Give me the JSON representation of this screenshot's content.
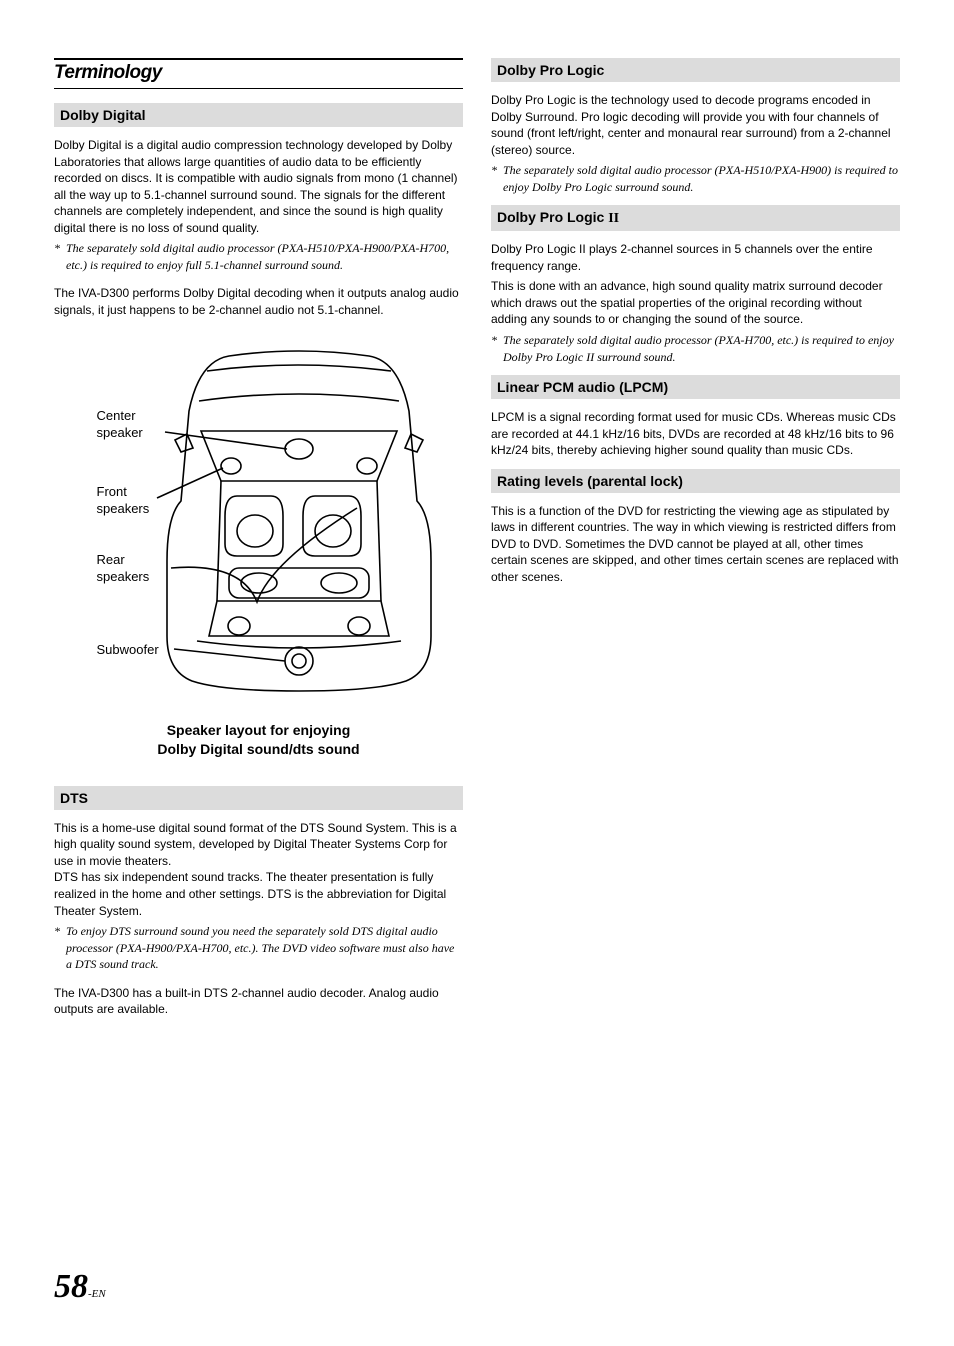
{
  "section_title": "Terminology",
  "left": {
    "h1": "Dolby Digital",
    "p1": "Dolby Digital is a digital audio compression technology developed by Dolby Laboratories that allows large quantities of audio data to be efficiently recorded on discs. It is compatible with audio signals from mono (1 channel) all the way up to 5.1-channel surround sound. The signals for the different channels are completely independent, and since the sound is high quality digital there is no loss of sound quality.",
    "n1": "The separately sold digital audio processor (PXA-H510/PXA-H900/PXA-H700, etc.) is required to enjoy full 5.1-channel surround sound.",
    "p2": "The IVA-D300 performs Dolby Digital decoding when it outputs analog audio signals, it just happens to be 2-channel audio not 5.1-channel.",
    "labels": {
      "center": "Center\nspeaker",
      "front": "Front\nspeakers",
      "rear": "Rear\nspeakers",
      "sub": "Subwoofer"
    },
    "caption": "Speaker layout for enjoying\nDolby Digital sound/dts sound",
    "h2": "DTS",
    "p3": "This is a home-use digital sound format of the DTS Sound System. This is a high quality sound system, developed by Digital Theater Systems Corp for use in movie theaters.\nDTS has six independent sound tracks.  The theater presentation is fully realized in the home and other settings. DTS is the abbreviation for Digital Theater System.",
    "n2": "To enjoy DTS surround sound you need the separately sold DTS digital audio processor (PXA-H900/PXA-H700, etc.).  The DVD video software must also have a DTS sound track.",
    "p4": "The IVA-D300 has a built-in DTS 2-channel audio decoder. Analog audio outputs are available."
  },
  "right": {
    "h1": "Dolby Pro Logic",
    "p1": "Dolby Pro Logic is the technology used to decode programs encoded in Dolby Surround. Pro logic decoding will provide you with four channels of sound (front left/right, center and monaural rear surround) from a 2-channel (stereo) source.",
    "n1": "The separately sold digital audio processor (PXA-H510/PXA-H900) is required to enjoy Dolby Pro Logic surround sound.",
    "h2": "Dolby Pro Logic II",
    "p2": "Dolby Pro Logic II plays 2-channel sources in 5 channels over the entire frequency range.",
    "p3": "This is done with an advance, high sound quality matrix surround decoder which draws out the spatial properties of the original recording without adding any sounds to or changing the sound of the source.",
    "n2": "The separately sold digital audio processor (PXA-H700, etc.) is required to enjoy Dolby Pro Logic II surround sound.",
    "h3": "Linear PCM audio (LPCM)",
    "p4": "LPCM is a signal recording format used for music CDs. Whereas music CDs are recorded at 44.1 kHz/16 bits, DVDs are recorded at 48 kHz/16 bits to 96 kHz/24 bits, thereby achieving higher sound quality than music CDs.",
    "h4": "Rating levels (parental lock)",
    "p5": "This is a function of the DVD for restricting the viewing age as stipulated by laws in different countries.  The way in which viewing is restricted differs from DVD to DVD.  Sometimes the DVD cannot be played at all, other times certain scenes are skipped, and other times certain scenes are replaced with other scenes."
  },
  "page_number": "58",
  "page_suffix": "-EN"
}
